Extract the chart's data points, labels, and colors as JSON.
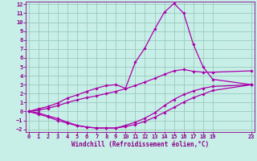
{
  "bg_color": "#c8eee8",
  "grid_color": "#99ccbb",
  "line_color": "#aa00aa",
  "tick_color": "#880088",
  "xlim": [
    -0.3,
    23.3
  ],
  "ylim": [
    -2.3,
    12.3
  ],
  "xticks": [
    0,
    1,
    2,
    3,
    4,
    5,
    6,
    7,
    8,
    9,
    10,
    11,
    12,
    13,
    14,
    15,
    16,
    17,
    18,
    19,
    23
  ],
  "yticks": [
    -2,
    -1,
    0,
    1,
    2,
    3,
    4,
    5,
    6,
    7,
    8,
    9,
    10,
    11,
    12
  ],
  "xlabel": "Windchill (Refroidissement éolien,°C)",
  "lines": [
    {
      "x": [
        0,
        1,
        2,
        3,
        4,
        5,
        6,
        7,
        8,
        9,
        10,
        11,
        12,
        13,
        14,
        15,
        16,
        17,
        18,
        19,
        23
      ],
      "y": [
        0.0,
        -0.3,
        -0.6,
        -1.0,
        -1.3,
        -1.6,
        -1.75,
        -1.85,
        -1.85,
        -1.85,
        -1.7,
        -1.45,
        -1.1,
        -0.65,
        -0.1,
        0.45,
        1.05,
        1.55,
        1.95,
        2.35,
        3.0
      ]
    },
    {
      "x": [
        0,
        1,
        2,
        3,
        4,
        5,
        6,
        7,
        8,
        9,
        10,
        11,
        12,
        13,
        14,
        15,
        16,
        17,
        18,
        19,
        23
      ],
      "y": [
        0.0,
        -0.15,
        -0.5,
        -0.8,
        -1.2,
        -1.55,
        -1.75,
        -1.85,
        -1.85,
        -1.85,
        -1.55,
        -1.2,
        -0.75,
        -0.15,
        0.65,
        1.35,
        1.9,
        2.3,
        2.6,
        2.8,
        3.0
      ]
    },
    {
      "x": [
        0,
        1,
        2,
        3,
        4,
        5,
        6,
        7,
        8,
        9,
        10,
        11,
        12,
        13,
        14,
        15,
        16,
        17,
        18,
        19,
        23
      ],
      "y": [
        0.0,
        0.15,
        0.35,
        0.65,
        1.0,
        1.3,
        1.55,
        1.75,
        2.0,
        2.25,
        2.55,
        2.9,
        3.3,
        3.7,
        4.15,
        4.55,
        4.7,
        4.5,
        4.4,
        4.4,
        4.55
      ]
    },
    {
      "x": [
        0,
        1,
        2,
        3,
        4,
        5,
        6,
        7,
        8,
        9,
        10,
        11,
        12,
        13,
        14,
        15,
        16,
        17,
        18,
        19,
        23
      ],
      "y": [
        0.0,
        0.3,
        0.55,
        0.95,
        1.5,
        1.85,
        2.25,
        2.6,
        2.9,
        3.0,
        2.6,
        5.5,
        7.1,
        9.2,
        11.1,
        12.1,
        11.0,
        7.5,
        5.0,
        3.6,
        3.0
      ]
    }
  ],
  "marker": "D",
  "markersize": 1.8,
  "linewidth": 0.9,
  "xlabel_fontsize": 5.5,
  "tick_fontsize": 5.0
}
